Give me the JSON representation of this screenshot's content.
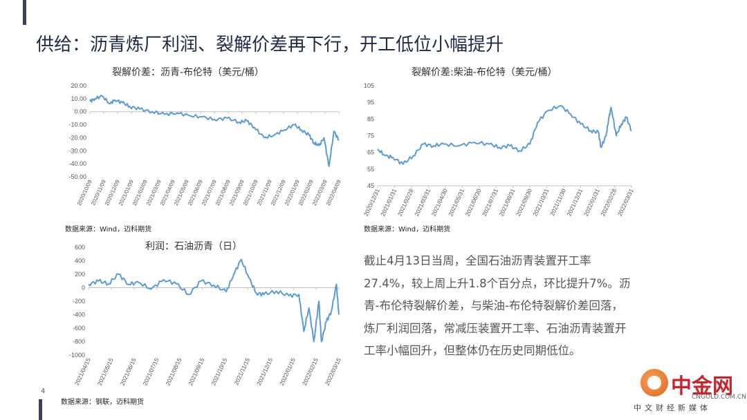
{
  "page": {
    "title": "供给：沥青炼厂利润、裂解价差再下行，开工低位小幅提升",
    "page_number": "4",
    "paragraph": "截止4月13日当周，全国石油沥青装置开工率27.4%，较上周上升1.8个百分点，环比提升7%。沥青-布伦特裂解价差，与柴油-布伦特裂解价差回落，炼厂利润回落，常减压装置开工率、石油沥青装置开工率小幅回升，但整体仍在历史同期低位。",
    "logo": {
      "cn": "中金网",
      "url": "CNGOLD.COM.CN",
      "sub": "中文财经新媒体"
    },
    "line_color": "#5b9bd5"
  },
  "charts": [
    {
      "title": "裂解价差：沥青-布伦特（美元/桶）",
      "source": "数据来源：Wind，迈科期货",
      "y_ticks": [
        "20.00",
        "10.00",
        "0.00",
        "-10.00",
        "-20.00",
        "-30.00",
        "-40.00",
        "-50.00"
      ],
      "x_ticks": [
        "2020/10/09",
        "2020/11/09",
        "2020/12/09",
        "2021/01/09",
        "2021/02/09",
        "2021/03/09",
        "2021/04/09",
        "2021/05/09",
        "2021/06/09",
        "2021/07/09",
        "2021/08/09",
        "2021/09/09",
        "2021/10/09",
        "2021/11/09",
        "2021/12/09",
        "2022/01/09",
        "2022/02/09",
        "2022/03/09",
        "2022/04/09"
      ]
    },
    {
      "title": "裂解价差:柴油-布伦特（美元/桶）",
      "source": "数据来源：Wind，迈科期货",
      "y_ticks": [
        "105",
        "95",
        "85",
        "75",
        "65",
        "55",
        "45"
      ],
      "x_ticks": [
        "2020/12/31",
        "2021/01/31",
        "2021/02/28",
        "2021/03/31",
        "2021/04/30",
        "2021/05/31",
        "2021/06/30",
        "2021/07/31",
        "2021/08/31",
        "2021/09/30",
        "2021/10/31",
        "2021/11/30",
        "2021/12/31",
        "2022/01/31",
        "2022/02/28",
        "2022/03/31"
      ]
    },
    {
      "title": "利润：石油沥青（日）",
      "source": "数据来源：钢联，迈科期货",
      "y_ticks": [
        "600",
        "400",
        "200",
        "0",
        "-200",
        "-400",
        "-600",
        "-800",
        "-1000"
      ],
      "x_ticks": [
        "2021/04/15",
        "2021/05/15",
        "2021/06/15",
        "2021/07/15",
        "2021/08/15",
        "2021/09/15",
        "2021/10/15",
        "2021/11/15",
        "2021/12/15",
        "2022/01/15",
        "2022/02/15",
        "2022/03/15"
      ]
    }
  ],
  "chart_data": [
    {
      "type": "line",
      "title": "裂解价差：沥青-布伦特（美元/桶）",
      "x_range": [
        "2020/10/01",
        "2022/04/13"
      ],
      "ylim": [
        -50,
        20
      ],
      "series": [
        {
          "x": [
            0,
            0.02,
            0.05,
            0.08,
            0.1,
            0.13,
            0.16,
            0.2,
            0.25,
            0.3,
            0.35,
            0.4,
            0.45,
            0.5,
            0.55,
            0.6,
            0.63,
            0.66,
            0.7,
            0.74,
            0.78,
            0.82,
            0.85,
            0.88,
            0.9,
            0.92,
            0.94,
            0.96,
            0.98,
            1.0
          ],
          "values": [
            8,
            10,
            12,
            6,
            9,
            7,
            4,
            2,
            0,
            -2,
            -1,
            -3,
            -4,
            -6,
            -5,
            -8,
            -7,
            -12,
            -20,
            -18,
            -14,
            -10,
            -14,
            -18,
            -24,
            -26,
            -20,
            -42,
            -15,
            -22
          ]
        }
      ]
    },
    {
      "type": "line",
      "title": "裂解价差:柴油-布伦特（美元/桶）",
      "x_range": [
        "2020/12/31",
        "2022/04/13"
      ],
      "ylim": [
        45,
        105
      ],
      "series": [
        {
          "x": [
            0,
            0.03,
            0.06,
            0.1,
            0.14,
            0.18,
            0.22,
            0.26,
            0.32,
            0.38,
            0.44,
            0.48,
            0.52,
            0.56,
            0.6,
            0.63,
            0.67,
            0.72,
            0.76,
            0.8,
            0.84,
            0.87,
            0.88,
            0.9,
            0.91,
            0.92,
            0.94,
            0.96,
            0.98,
            1.0
          ],
          "values": [
            67,
            63,
            62,
            58,
            63,
            70,
            69,
            70,
            69,
            71,
            70,
            68,
            69,
            66,
            70,
            83,
            90,
            93,
            88,
            82,
            78,
            77,
            68,
            75,
            85,
            92,
            75,
            82,
            86,
            78
          ]
        }
      ]
    },
    {
      "type": "line",
      "title": "利润：石油沥青（日）",
      "x_range": [
        "2021/04/01",
        "2022/04/13"
      ],
      "ylim": [
        -1000,
        600
      ],
      "series": [
        {
          "x": [
            0,
            0.04,
            0.08,
            0.12,
            0.16,
            0.2,
            0.25,
            0.3,
            0.35,
            0.4,
            0.45,
            0.5,
            0.55,
            0.58,
            0.61,
            0.64,
            0.67,
            0.7,
            0.75,
            0.8,
            0.84,
            0.86,
            0.88,
            0.9,
            0.92,
            0.93,
            0.95,
            0.97,
            0.99,
            1.0
          ],
          "values": [
            50,
            100,
            60,
            200,
            50,
            80,
            -20,
            120,
            60,
            -100,
            100,
            40,
            -60,
            200,
            420,
            150,
            -80,
            -100,
            -50,
            -120,
            -100,
            -650,
            -300,
            -800,
            -200,
            -800,
            -500,
            -350,
            50,
            -400
          ]
        }
      ]
    }
  ]
}
